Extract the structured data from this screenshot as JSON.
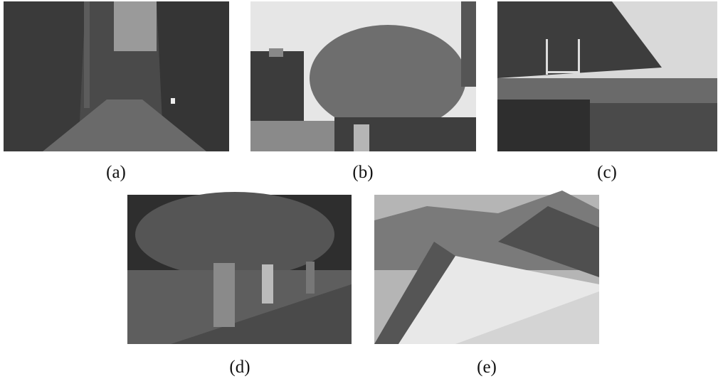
{
  "figure": {
    "panels": [
      {
        "caption": "(a)"
      },
      {
        "caption": "(b)"
      },
      {
        "caption": "(c)"
      },
      {
        "caption": "(d)"
      },
      {
        "caption": "(e)"
      }
    ]
  }
}
